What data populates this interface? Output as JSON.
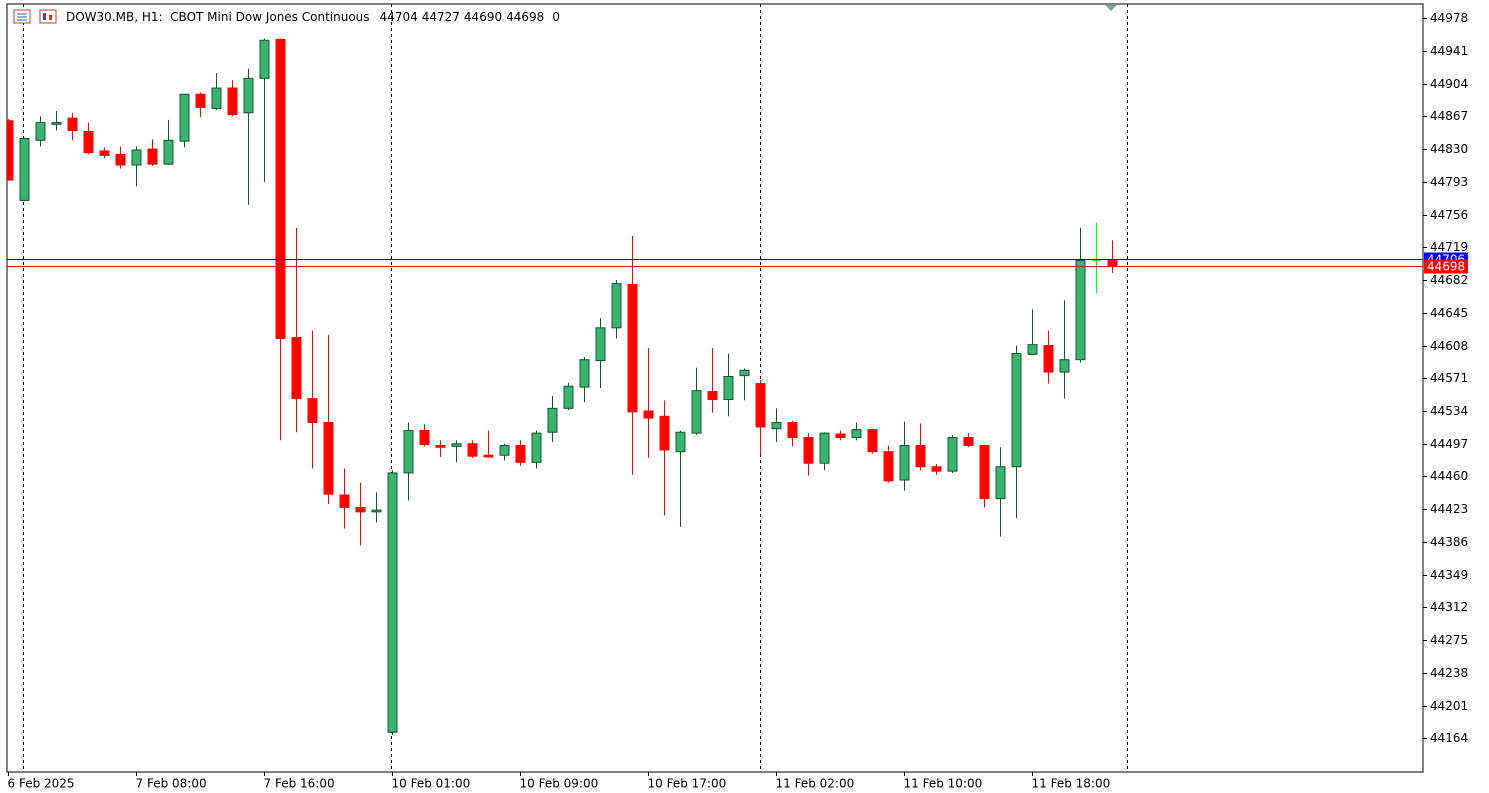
{
  "chart_data": {
    "type": "candlestick",
    "title": "DOW30.MB, H1:  CBOT Mini Dow Jones Continuous",
    "volume": 0,
    "categories": [
      "6 Feb 2025",
      null,
      null,
      null,
      null,
      null,
      null,
      null,
      "7 Feb 08:00",
      null,
      null,
      null,
      null,
      null,
      null,
      null,
      "7 Feb 16:00",
      null,
      null,
      null,
      null,
      null,
      null,
      null,
      "10 Feb 01:00",
      null,
      null,
      null,
      null,
      null,
      null,
      null,
      "10 Feb 09:00",
      null,
      null,
      null,
      null,
      null,
      null,
      null,
      "10 Feb 17:00",
      null,
      null,
      null,
      null,
      null,
      null,
      null,
      "11 Feb 02:00",
      null,
      null,
      null,
      null,
      null,
      null,
      null,
      "11 Feb 10:00",
      null,
      null,
      null,
      null,
      null,
      null,
      null,
      "11 Feb 18:00",
      null,
      null,
      null,
      null,
      null
    ],
    "open": [
      44862,
      44772,
      44840,
      44858,
      44865,
      44850,
      44828,
      44824,
      44812,
      44830,
      44813,
      44839,
      44892,
      44876,
      44899,
      44871,
      44910,
      44954,
      44617,
      44548,
      44521,
      44439,
      44425,
      44420,
      44171,
      44464,
      44512,
      44495,
      44494,
      44497,
      44484,
      44484,
      44495,
      44476,
      44510,
      44537,
      44561,
      44591,
      44628,
      44677,
      44534,
      44528,
      44488,
      44509,
      44556,
      44547,
      44574,
      44565,
      44514,
      44521,
      44504,
      44475,
      44508,
      44504,
      44513,
      44488,
      44456,
      44495,
      44471,
      44466,
      44504,
      44495,
      44435,
      44471,
      44598,
      44608,
      44578,
      44592,
      44704,
      44704
    ],
    "high": [
      44864,
      44843,
      44867,
      44873,
      44871,
      44860,
      44832,
      44833,
      44833,
      44841,
      44863,
      44892,
      44894,
      44916,
      44908,
      44921,
      44955,
      44955,
      44741,
      44625,
      44620,
      44469,
      44453,
      44442,
      44467,
      44521,
      44519,
      44501,
      44501,
      44501,
      44512,
      44497,
      44501,
      44512,
      44551,
      44566,
      44595,
      44639,
      44682,
      44732,
      44605,
      44546,
      44512,
      44583,
      44605,
      44599,
      44582,
      44569,
      44537,
      44523,
      44509,
      44510,
      44512,
      44521,
      44514,
      44495,
      44522,
      44520,
      44474,
      44507,
      44509,
      44496,
      44493,
      44608,
      44649,
      44625,
      44659,
      44741,
      44747,
      44727
    ],
    "low": [
      44795,
      44771,
      44833,
      44851,
      44840,
      44824,
      44820,
      44808,
      44788,
      44811,
      44812,
      44832,
      44866,
      44874,
      44867,
      44767,
      44793,
      44501,
      44510,
      44469,
      44429,
      44401,
      44382,
      44408,
      44168,
      44433,
      44494,
      44482,
      44476,
      44481,
      44481,
      44478,
      44472,
      44469,
      44499,
      44535,
      44544,
      44560,
      44616,
      44462,
      44481,
      44416,
      44403,
      44507,
      44532,
      44528,
      44546,
      44484,
      44499,
      44494,
      44461,
      44467,
      44501,
      44501,
      44486,
      44453,
      44444,
      44467,
      44462,
      44464,
      44493,
      44425,
      44392,
      44413,
      44597,
      44565,
      44548,
      44589,
      44667,
      44690
    ],
    "close": [
      44795,
      44842,
      44860,
      44860,
      44851,
      44826,
      44823,
      44812,
      44829,
      44813,
      44840,
      44892,
      44877,
      44899,
      44869,
      44910,
      44953,
      44616,
      44548,
      44521,
      44440,
      44425,
      44420,
      44422,
      44464,
      44512,
      44496,
      44493,
      44497,
      44483,
      44482,
      44495,
      44476,
      44509,
      44537,
      44562,
      44592,
      44628,
      44678,
      44533,
      44526,
      44490,
      44510,
      44557,
      44547,
      44573,
      44580,
      44516,
      44521,
      44504,
      44475,
      44509,
      44504,
      44513,
      44488,
      44455,
      44495,
      44471,
      44466,
      44504,
      44495,
      44435,
      44471,
      44599,
      44609,
      44578,
      44592,
      44704,
      44704,
      44698
    ],
    "up_color": "#3cb371",
    "up_line_color": "#14532d",
    "down_color": "#ff0000",
    "doji_color": "#00ff00",
    "price_lines": [
      {
        "value": 44706,
        "color": "#0000ff"
      },
      {
        "value": 44698,
        "color": "#ff0000"
      }
    ],
    "ylim": [
      44126,
      44994
    ],
    "yticks": [
      44978,
      44941,
      44904,
      44867,
      44830,
      44793,
      44756,
      44719,
      44682,
      44645,
      44608,
      44571,
      44534,
      44497,
      44460,
      44423,
      44386,
      44349,
      44312,
      44275,
      44238,
      44201,
      44164
    ],
    "grid": false
  }
}
